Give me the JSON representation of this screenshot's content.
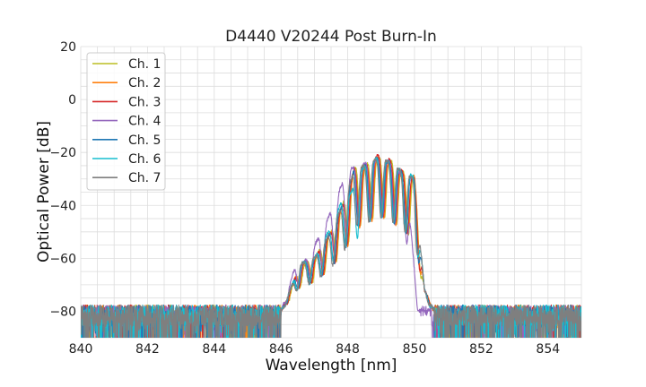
{
  "chart_data": {
    "type": "line",
    "title": "D4440 V20244 Post Burn-In",
    "xlabel": "Wavelength [nm]",
    "ylabel": "Optical Power [dB]",
    "xlim": [
      840,
      855
    ],
    "ylim": [
      -90,
      20
    ],
    "xticks": [
      840,
      842,
      844,
      846,
      848,
      850,
      852,
      854
    ],
    "yticks": [
      20,
      0,
      -20,
      -40,
      -60,
      -80
    ],
    "xticklabels": [
      "840",
      "842",
      "844",
      "846",
      "848",
      "850",
      "852",
      "854"
    ],
    "yticklabels": [
      "20",
      "0",
      "−20",
      "−40",
      "−60",
      "−80"
    ],
    "grid": true,
    "legend_position": "top-left",
    "noise_floor_db": -80,
    "series": [
      {
        "name": "Ch. 1",
        "color": "#bcbd22",
        "points": [
          [
            846.0,
            -80
          ],
          [
            846.6,
            -63
          ],
          [
            847.0,
            -60
          ],
          [
            847.5,
            -50
          ],
          [
            847.9,
            -38
          ],
          [
            848.2,
            -26
          ],
          [
            848.5,
            -25
          ],
          [
            848.9,
            -22
          ],
          [
            849.3,
            -23
          ],
          [
            849.7,
            -28
          ],
          [
            850.0,
            -30
          ],
          [
            850.3,
            -72
          ],
          [
            850.6,
            -80
          ]
        ]
      },
      {
        "name": "Ch. 2",
        "color": "#ff7f0e",
        "points": [
          [
            846.0,
            -80
          ],
          [
            846.6,
            -62
          ],
          [
            847.0,
            -60
          ],
          [
            847.5,
            -50
          ],
          [
            847.9,
            -39
          ],
          [
            848.2,
            -27
          ],
          [
            848.5,
            -26
          ],
          [
            848.9,
            -22
          ],
          [
            849.3,
            -24
          ],
          [
            849.7,
            -28
          ],
          [
            850.0,
            -29
          ],
          [
            850.3,
            -72
          ],
          [
            850.6,
            -80
          ]
        ]
      },
      {
        "name": "Ch. 3",
        "color": "#d62728",
        "points": [
          [
            846.0,
            -80
          ],
          [
            846.6,
            -62
          ],
          [
            847.0,
            -60
          ],
          [
            847.5,
            -50
          ],
          [
            847.9,
            -38
          ],
          [
            848.2,
            -26
          ],
          [
            848.5,
            -25
          ],
          [
            848.9,
            -21
          ],
          [
            849.3,
            -23
          ],
          [
            849.7,
            -28
          ],
          [
            850.0,
            -30
          ],
          [
            850.3,
            -72
          ],
          [
            850.6,
            -80
          ]
        ]
      },
      {
        "name": "Ch. 4",
        "color": "#9467bd",
        "points": [
          [
            846.0,
            -80
          ],
          [
            846.4,
            -64
          ],
          [
            846.8,
            -60
          ],
          [
            847.3,
            -48
          ],
          [
            847.7,
            -36
          ],
          [
            848.0,
            -26
          ],
          [
            848.4,
            -25
          ],
          [
            848.7,
            -23
          ],
          [
            849.1,
            -22
          ],
          [
            849.5,
            -26
          ],
          [
            849.8,
            -35
          ],
          [
            850.1,
            -80
          ],
          [
            850.5,
            -80
          ]
        ]
      },
      {
        "name": "Ch. 5",
        "color": "#1f77b4",
        "points": [
          [
            846.0,
            -80
          ],
          [
            846.6,
            -62
          ],
          [
            847.0,
            -60
          ],
          [
            847.5,
            -50
          ],
          [
            847.9,
            -38
          ],
          [
            848.2,
            -26
          ],
          [
            848.5,
            -25
          ],
          [
            848.9,
            -22
          ],
          [
            849.3,
            -24
          ],
          [
            849.7,
            -28
          ],
          [
            850.0,
            -30
          ],
          [
            850.3,
            -72
          ],
          [
            850.6,
            -80
          ]
        ]
      },
      {
        "name": "Ch. 6",
        "color": "#17becf",
        "points": [
          [
            846.0,
            -80
          ],
          [
            846.6,
            -62
          ],
          [
            847.0,
            -60
          ],
          [
            847.5,
            -48
          ],
          [
            847.9,
            -36
          ],
          [
            848.1,
            -35
          ],
          [
            848.5,
            -25
          ],
          [
            848.9,
            -22
          ],
          [
            849.3,
            -24
          ],
          [
            849.7,
            -28
          ],
          [
            850.0,
            -29
          ],
          [
            850.3,
            -72
          ],
          [
            850.6,
            -80
          ]
        ]
      },
      {
        "name": "Ch. 7",
        "color": "#7f7f7f",
        "points": [
          [
            846.0,
            -80
          ],
          [
            846.6,
            -62
          ],
          [
            847.0,
            -60
          ],
          [
            847.5,
            -50
          ],
          [
            847.9,
            -38
          ],
          [
            848.2,
            -26
          ],
          [
            848.5,
            -25
          ],
          [
            848.9,
            -22
          ],
          [
            849.3,
            -24
          ],
          [
            849.7,
            -28
          ],
          [
            850.0,
            -30
          ],
          [
            850.3,
            -72
          ],
          [
            850.6,
            -80
          ]
        ]
      }
    ]
  }
}
